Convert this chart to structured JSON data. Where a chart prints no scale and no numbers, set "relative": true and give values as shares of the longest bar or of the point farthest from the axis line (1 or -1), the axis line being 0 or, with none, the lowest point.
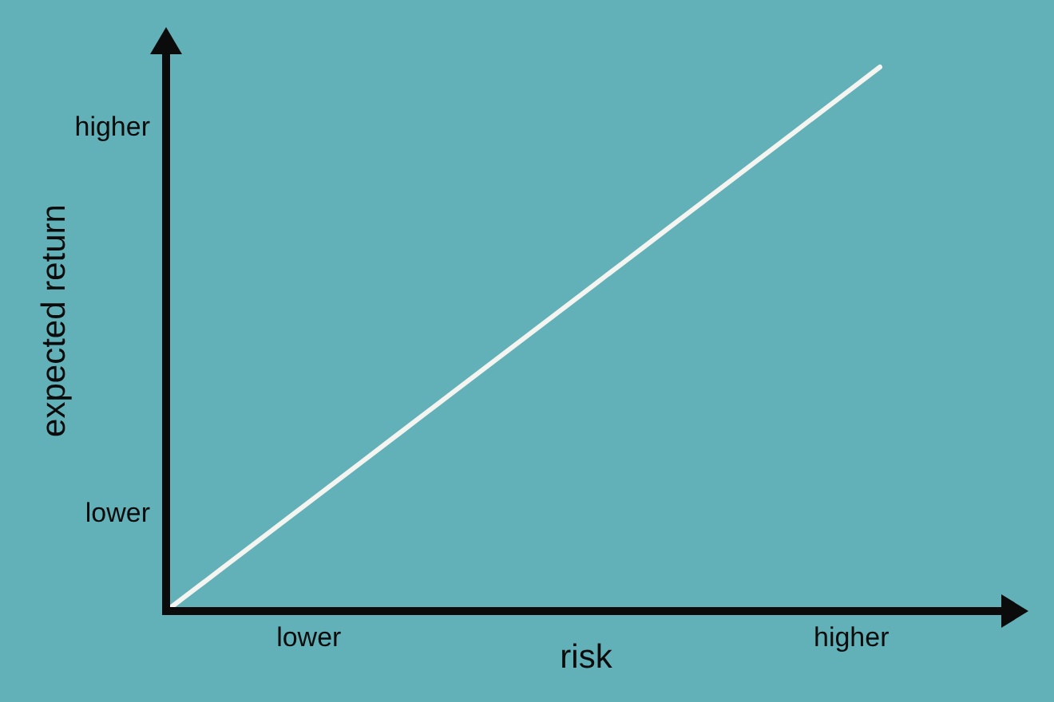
{
  "chart_data": {
    "type": "line",
    "relative": true,
    "xlabel": "risk",
    "ylabel": "expected return",
    "categories": [
      null,
      null,
      null,
      null,
      null,
      "lower",
      null,
      null,
      null,
      null,
      null,
      null,
      null,
      null,
      null,
      null,
      null,
      null,
      null,
      null,
      null,
      null,
      null,
      null,
      "higher",
      null
    ],
    "series": [
      {
        "color": "#f4f4f0",
        "values": [
          0,
          0.04,
          0.08,
          0.12,
          0.16,
          0.2,
          0.24,
          0.28,
          0.32,
          0.36,
          0.4,
          0.44,
          0.48,
          0.52,
          0.56,
          0.6,
          0.64,
          0.68,
          0.72,
          0.76,
          0.8,
          0.84,
          0.88,
          0.92,
          0.96,
          1
        ]
      }
    ],
    "annotations": [
      "lower",
      "higher"
    ]
  }
}
